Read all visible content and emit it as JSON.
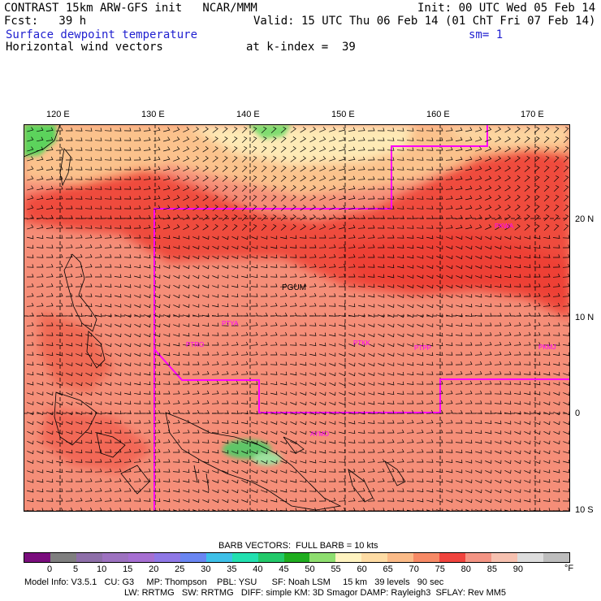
{
  "header": {
    "line1_left": "CONTRAST 15km ARW-GFS init   NCAR/MMM",
    "line1_right": "Init: 00 UTC Wed 05 Feb 14",
    "line2_left": "Fcst:   39 h",
    "line2_right": "Valid: 15 UTC Thu 06 Feb 14 (01 ChT Fri 07 Feb 14)",
    "field1": "Surface dewpoint temperature",
    "smoothing": "sm= 1",
    "field2": "Horizontal wind vectors",
    "level": "at k-index =  39"
  },
  "axes": {
    "lon_labels": [
      "120 E",
      "130 E",
      "140 E",
      "150 E",
      "160 E",
      "170 E"
    ],
    "lat_labels": [
      "20 N",
      "10 N",
      "0",
      "10 S"
    ]
  },
  "map_labels": {
    "pgum": "PGUM",
    "ptyа": "PTYA",
    "ptro": "PTRO",
    "ptkk": "PTKK",
    "ptpp": "PTPP",
    "pkmj": "PKMJ",
    "pkwa": "PKWA",
    "ayno": "AYMO"
  },
  "colorbar": {
    "title": "BARB VECTORS:  FULL BARB = 10 kts",
    "ticks": [
      "0",
      "5",
      "10",
      "15",
      "20",
      "25",
      "30",
      "35",
      "40",
      "45",
      "50",
      "55",
      "60",
      "65",
      "70",
      "75",
      "80",
      "85",
      "90"
    ],
    "unit": "°F",
    "colors": [
      "#7a0d7d",
      "#7f7f7f",
      "#8e6fa9",
      "#9d72c0",
      "#a66fd2",
      "#8f78e6",
      "#6a86f2",
      "#3ec0e8",
      "#22e0b0",
      "#23c96a",
      "#1fad1f",
      "#8ede6f",
      "#fff3c0",
      "#fedca4",
      "#fbbb88",
      "#f78a66",
      "#f0443e",
      "#f39484",
      "#f6c1b0",
      "#dddddd",
      "#bdbdbd"
    ]
  },
  "footer": {
    "line1": "Model Info: V3.5.1   CU: G3     MP: Thompson    PBL: YSU      SF: Noah LSM     15 km   39 levels   90 sec",
    "line2": "LW: RRTMG   SW: RRTMG   DIFF: simple KM: 3D Smagor DAMP: Rayleigh3  SFLAY: Rev MM5"
  }
}
